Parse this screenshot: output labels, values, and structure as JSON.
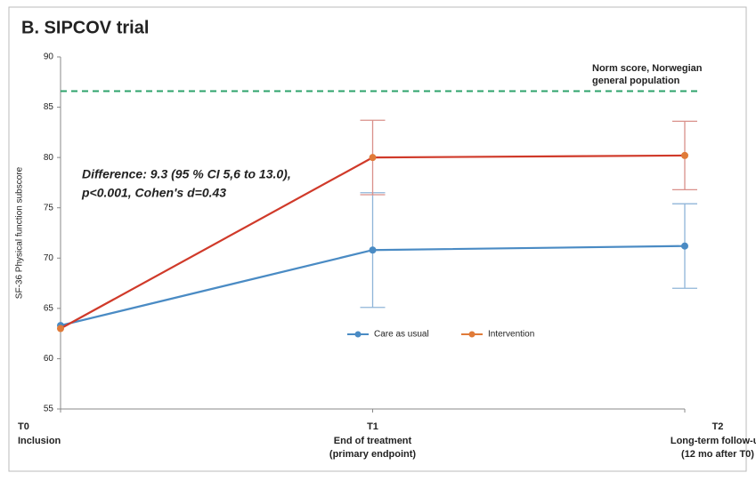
{
  "chart_data": {
    "type": "line",
    "title": "B. SIPCOV trial",
    "ylabel": "SF-36 Physical function subscore",
    "categories": [
      "T0",
      "T1",
      "T2"
    ],
    "category_sublabels": [
      [
        "Inclusion"
      ],
      [
        "End of treatment",
        "(primary endpoint)"
      ],
      [
        "Long-term follow-up",
        "(12 mo after T0)"
      ]
    ],
    "series": [
      {
        "name": "Care as usual",
        "color": "#4a8bc4",
        "line_color": "#4a8bc4",
        "values": [
          63.3,
          70.8,
          71.2
        ],
        "errors": [
          null,
          5.7,
          4.2
        ],
        "error_color": "#8fb4d8"
      },
      {
        "name": "Intervention",
        "color": "#e07b39",
        "line_color": "#d03a2a",
        "values": [
          63.0,
          80.0,
          80.2
        ],
        "errors": [
          null,
          3.7,
          3.4
        ],
        "error_color": "#d9908a"
      }
    ],
    "ylim": [
      55,
      90
    ],
    "yticks": [
      55,
      60,
      65,
      70,
      75,
      80,
      85,
      90
    ],
    "reference_line": {
      "value": 86.6,
      "color": "#2ea36b",
      "label_lines": [
        "Norm score, Norwegian",
        "general population"
      ]
    },
    "annotation_lines": [
      "Difference: 9.3 (95 % CI 5,6 to 13.0),",
      "p<0.001, Cohen's d=0.43"
    ]
  }
}
